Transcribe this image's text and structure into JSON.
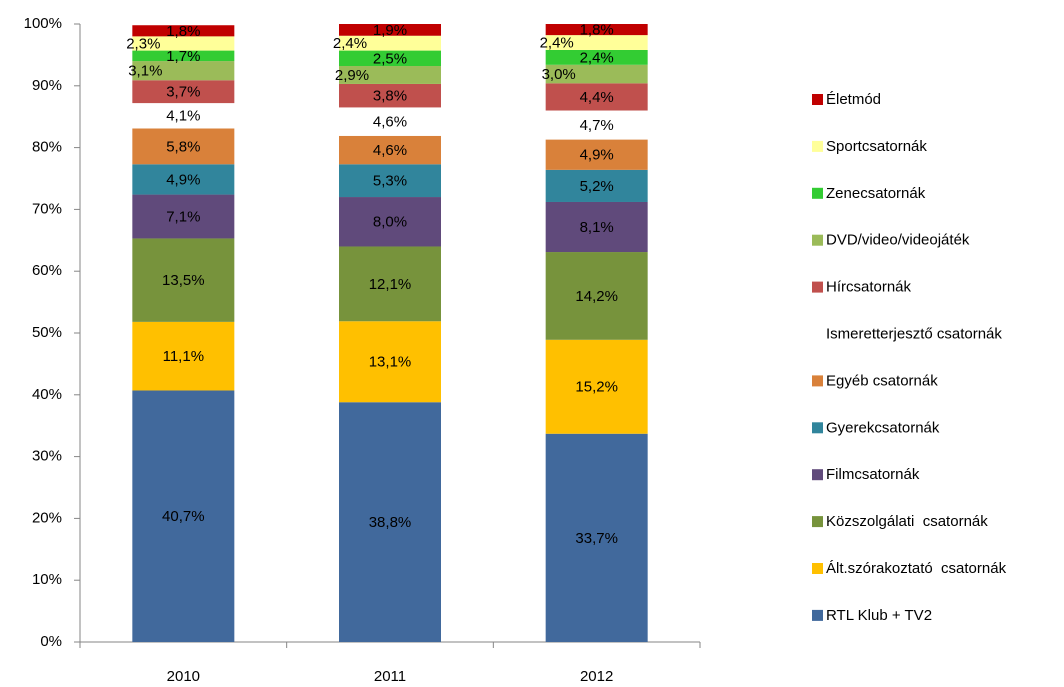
{
  "chart_data": {
    "type": "stacked_bar",
    "categories": [
      "2010",
      "2011",
      "2012"
    ],
    "ylim": [
      0,
      100
    ],
    "yticks": [
      {
        "value": 0,
        "label": "0%"
      },
      {
        "value": 10,
        "label": "10%"
      },
      {
        "value": 20,
        "label": "20%"
      },
      {
        "value": 30,
        "label": "30%"
      },
      {
        "value": 40,
        "label": "40%"
      },
      {
        "value": 50,
        "label": "50%"
      },
      {
        "value": 60,
        "label": "60%"
      },
      {
        "value": 70,
        "label": "70%"
      },
      {
        "value": 80,
        "label": "80%"
      },
      {
        "value": 90,
        "label": "90%"
      },
      {
        "value": 100,
        "label": "100%"
      }
    ],
    "legend": "right",
    "series": [
      {
        "name": "RTL Klub + TV2",
        "color": "#41699c",
        "values": [
          40.7,
          38.8,
          33.7
        ],
        "value_labels": [
          "40,7%",
          "38,8%",
          "33,7%"
        ]
      },
      {
        "name": "Ált.szórakoztató  csatornák",
        "color": "#ffc000",
        "values": [
          11.1,
          13.1,
          15.2
        ],
        "value_labels": [
          "11,1%",
          "13,1%",
          "15,2%"
        ]
      },
      {
        "name": "Közszolgálati  csatornák",
        "color": "#77933c",
        "values": [
          13.5,
          12.1,
          14.2
        ],
        "value_labels": [
          "13,5%",
          "12,1%",
          "14,2%"
        ]
      },
      {
        "name": "Filmcsatornák",
        "color": "#604a7b",
        "values": [
          7.1,
          8.0,
          8.1
        ],
        "value_labels": [
          "7,1%",
          "8,0%",
          "8,1%"
        ]
      },
      {
        "name": "Gyerekcsatornák",
        "color": "#31859c",
        "values": [
          4.9,
          5.3,
          5.2
        ],
        "value_labels": [
          "4,9%",
          "5,3%",
          "5,2%"
        ]
      },
      {
        "name": "Egyéb csatornák",
        "color": "#d9813a",
        "values": [
          5.8,
          4.6,
          4.9
        ],
        "value_labels": [
          "5,8%",
          "4,6%",
          "4,9%"
        ]
      },
      {
        "name": "Ismeretterjesztő csatornák",
        "color": "#ffffff",
        "values": [
          4.1,
          4.6,
          4.7
        ],
        "value_labels": [
          "4,1%",
          "4,6%",
          "4,7%"
        ]
      },
      {
        "name": "Hírcsatornák",
        "color": "#c0504d",
        "values": [
          3.7,
          3.8,
          4.4
        ],
        "value_labels": [
          "3,7%",
          "3,8%",
          "4,4%"
        ]
      },
      {
        "name": "DVD/video/videojáték",
        "color": "#9bbb59",
        "values": [
          3.1,
          2.9,
          3.0
        ],
        "value_labels": [
          "3,1%",
          "2,9%",
          "3,0%"
        ]
      },
      {
        "name": "Zenecsatornák",
        "color": "#33cc33",
        "values": [
          1.7,
          2.5,
          2.4
        ],
        "value_labels": [
          "1,7%",
          "2,5%",
          "2,4%"
        ]
      },
      {
        "name": "Sportcsatornák",
        "color": "#ffff99",
        "values": [
          2.3,
          2.4,
          2.4
        ],
        "value_labels": [
          "2,3%",
          "2,4%",
          "2,4%"
        ]
      },
      {
        "name": "Életmód",
        "color": "#c00000",
        "values": [
          1.8,
          1.9,
          1.8
        ],
        "value_labels": [
          "1,8%",
          "1,9%",
          "1,8%"
        ]
      }
    ]
  }
}
